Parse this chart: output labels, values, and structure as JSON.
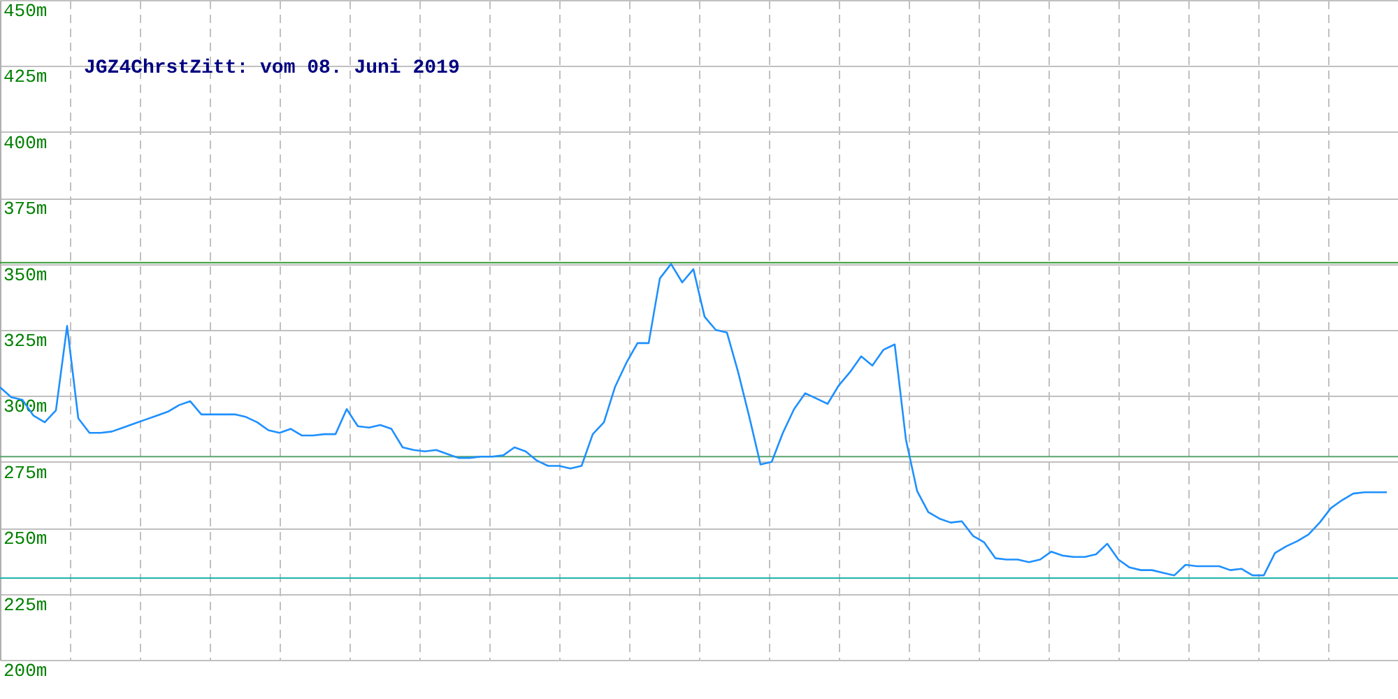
{
  "chart_data": {
    "type": "line",
    "title": "JGZ4ChrstZitt: vom 08. Juni 2019",
    "categories": [
      null,
      null,
      null,
      null,
      null,
      null,
      null,
      null,
      null,
      null,
      null,
      null,
      null,
      null,
      null,
      null,
      null,
      null,
      null,
      null,
      null,
      null,
      null,
      null,
      null,
      null,
      null,
      null,
      null,
      null,
      null,
      null,
      null,
      null,
      null,
      null,
      null,
      null,
      null,
      null,
      null,
      null,
      null,
      null,
      null,
      null,
      null,
      null,
      null,
      null,
      null,
      null,
      null,
      null,
      null,
      null,
      null,
      null,
      null,
      null,
      null,
      null,
      null,
      null,
      null,
      null,
      null,
      null,
      null,
      null,
      null,
      null,
      null,
      null,
      null,
      null,
      null,
      null,
      null,
      null,
      null,
      null,
      null,
      null,
      null,
      null,
      null,
      null,
      null,
      null,
      null,
      null,
      null,
      null,
      null,
      null,
      null,
      null,
      null,
      null,
      null,
      null,
      null,
      null,
      null,
      null,
      null,
      null,
      null,
      null,
      null,
      null,
      null,
      null,
      null,
      null,
      null,
      null,
      null,
      null,
      null,
      null,
      null,
      null,
      null
    ],
    "series": [
      {
        "color": "#1e90ff",
        "values": [
          303.3,
          299.5,
          298.5,
          292.5,
          290,
          294.5,
          326.5,
          291.5,
          286,
          286,
          286.5,
          288,
          289.5,
          291,
          292.5,
          294,
          296.5,
          298,
          293,
          293,
          293,
          293,
          292,
          290,
          287,
          286,
          287.5,
          285,
          285,
          285.5,
          285.5,
          295,
          288.5,
          288,
          289,
          287.5,
          280.5,
          279.5,
          279,
          279.5,
          278,
          276.5,
          276.5,
          277,
          277,
          277.5,
          280.5,
          279,
          275.5,
          273.5,
          273.5,
          272.5,
          273.5,
          285.5,
          290,
          303.5,
          312.5,
          320,
          320,
          344.5,
          350,
          343,
          348,
          330,
          325,
          324,
          309,
          292,
          274,
          275,
          286,
          295,
          301,
          299,
          297,
          304,
          309,
          315,
          311.5,
          317.5,
          319.5,
          283.5,
          264,
          256,
          253.5,
          252,
          252.5,
          247,
          244.5,
          238.5,
          238,
          238,
          237,
          238,
          241,
          239.5,
          239,
          239,
          240,
          244,
          238,
          235,
          234,
          234,
          233,
          232,
          236,
          235.5,
          235.5,
          235.5,
          234,
          234.5,
          232,
          232,
          240.5,
          243,
          245,
          247.5,
          252,
          257.5,
          260.5,
          263,
          263.5,
          263.5,
          263.5
        ]
      }
    ],
    "ylim": [
      200,
      450
    ],
    "yticks": [
      {
        "value": 200,
        "label": "200m"
      },
      {
        "value": 225,
        "label": "225m"
      },
      {
        "value": 250,
        "label": "250m"
      },
      {
        "value": 275,
        "label": "275m"
      },
      {
        "value": 300,
        "label": "300m"
      },
      {
        "value": 325,
        "label": "325m"
      },
      {
        "value": 350,
        "label": "350m"
      },
      {
        "value": 375,
        "label": "375m"
      },
      {
        "value": 400,
        "label": "400m"
      },
      {
        "value": 425,
        "label": "425m"
      },
      {
        "value": 450,
        "label": "450m"
      }
    ],
    "ref_lines": [
      {
        "axis": "y",
        "value": 350.5,
        "color": "#339933"
      },
      {
        "axis": "y",
        "value": 277,
        "color": "#5aa46e"
      },
      {
        "axis": "y",
        "value": 231,
        "color": "#20b2aa"
      }
    ],
    "grid": true,
    "tick_labels": "y",
    "marker": "none",
    "line_style": "solid"
  }
}
